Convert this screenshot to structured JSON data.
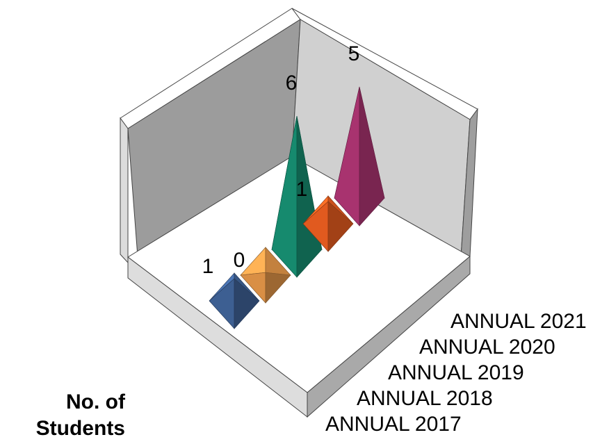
{
  "chart_data": {
    "type": "bar",
    "bar_shape": "pyramid",
    "projection": "3d",
    "categories": [
      "ANNUAL 2017",
      "ANNUAL 2018",
      "ANNUAL 2019",
      "ANNUAL 2020",
      "ANNUAL 2021"
    ],
    "values": [
      1,
      0,
      6,
      1,
      5
    ],
    "data_labels": [
      "1",
      "0",
      "6",
      "1",
      "5"
    ],
    "colors": [
      "#3d5f92",
      "#d98f45",
      "#168a6e",
      "#e15a1f",
      "#a8336f"
    ],
    "ylabel": "No. of Students",
    "xlabel": "",
    "title": "",
    "ylim": [
      0,
      6
    ],
    "legend": "none",
    "grid": false
  }
}
